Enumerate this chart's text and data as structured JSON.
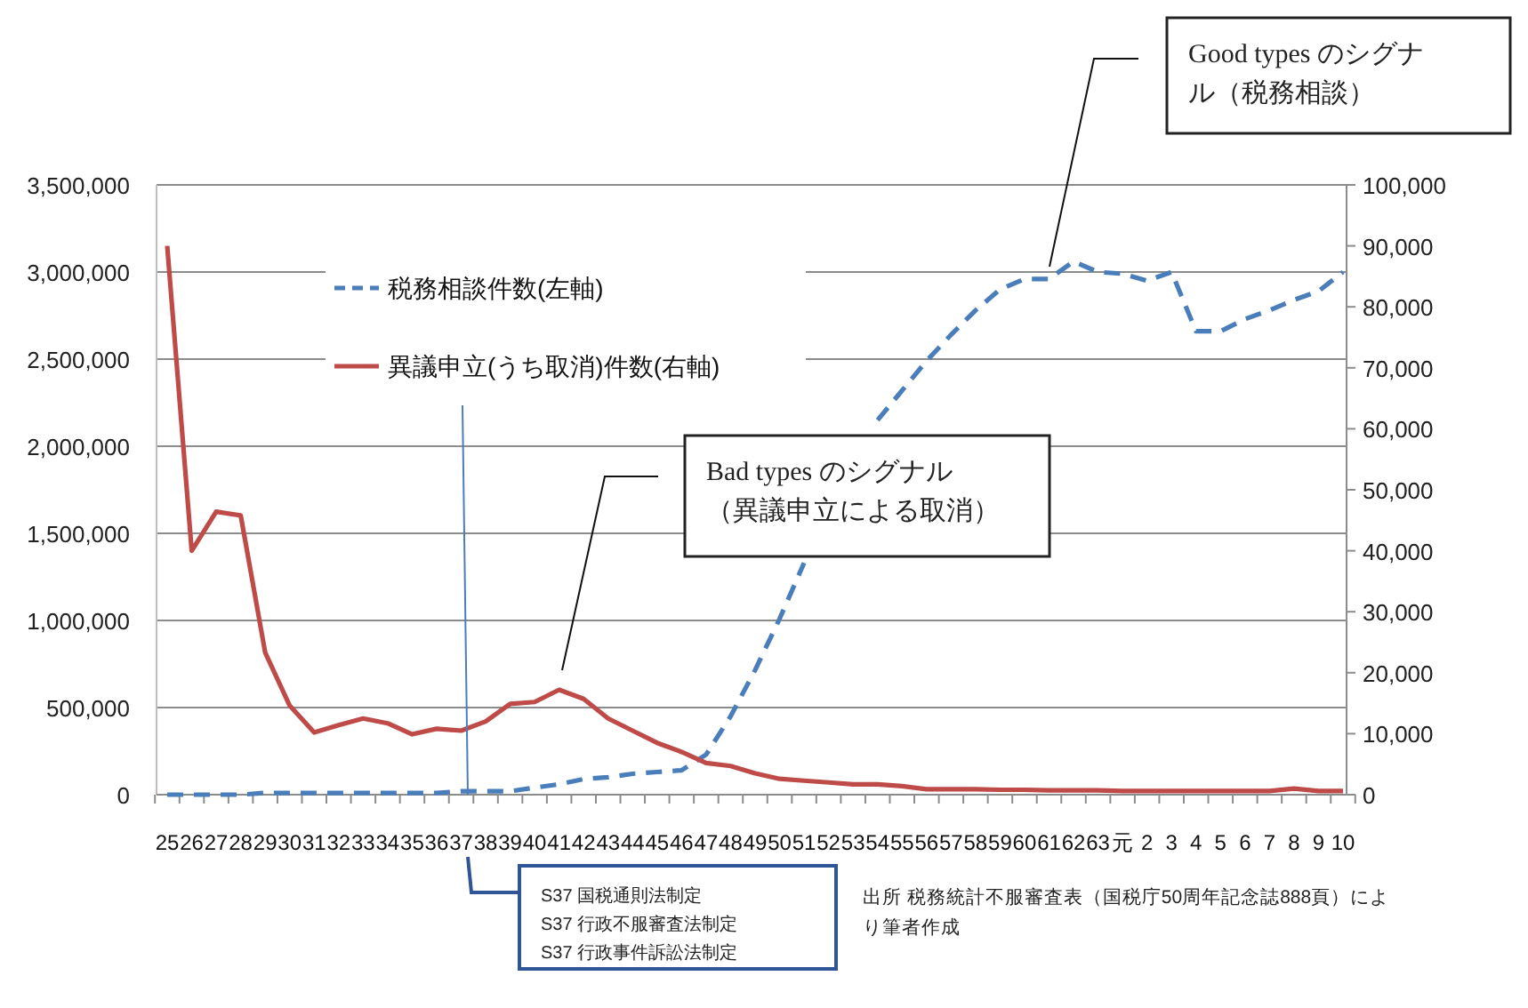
{
  "chart_data": {
    "type": "line",
    "categories": [
      "25",
      "26",
      "27",
      "28",
      "29",
      "30",
      "31",
      "32",
      "33",
      "34",
      "35",
      "36",
      "37",
      "38",
      "39",
      "40",
      "41",
      "42",
      "43",
      "44",
      "45",
      "46",
      "47",
      "48",
      "49",
      "50",
      "51",
      "52",
      "53",
      "54",
      "55",
      "56",
      "57",
      "58",
      "59",
      "60",
      "61",
      "62",
      "63",
      "元",
      "2",
      "3",
      "4",
      "5",
      "6",
      "7",
      "8",
      "9",
      "10"
    ],
    "series": [
      {
        "name": "税務相談件数(左軸)",
        "color": "#4a7ebb",
        "line_style": "dashed",
        "axis": "y",
        "values": [
          0,
          0,
          0,
          0,
          10000,
          10000,
          10000,
          10000,
          10000,
          10000,
          10000,
          10000,
          20000,
          20000,
          20000,
          40000,
          60000,
          90000,
          100000,
          120000,
          130000,
          140000,
          230000,
          450000,
          715000,
          1010000,
          1330000,
          null,
          null,
          2150000,
          2320000,
          2490000,
          2640000,
          2780000,
          2900000,
          2960000,
          2960000,
          3060000,
          3000000,
          2990000,
          2950000,
          3000000,
          2660000,
          2660000,
          2730000,
          2780000,
          2840000,
          2890000,
          3000000
        ]
      },
      {
        "name": "異議申立(うち取消)件数(右軸)",
        "color": "#be4b48",
        "line_style": "solid",
        "axis": "y2",
        "values": [
          90000,
          40000,
          46400,
          45800,
          23300,
          14600,
          10200,
          11400,
          12500,
          11700,
          9900,
          10800,
          10500,
          12000,
          14900,
          15200,
          17200,
          15700,
          12500,
          10500,
          8500,
          7000,
          5200,
          4700,
          3500,
          2600,
          2300,
          2000,
          1700,
          1700,
          1400,
          900,
          900,
          900,
          800,
          800,
          700,
          700,
          700,
          600,
          600,
          600,
          600,
          600,
          600,
          600,
          1000,
          600,
          600
        ]
      }
    ],
    "ylim": [
      0,
      3500000
    ],
    "yticks": [
      {
        "value": 0,
        "label": "0"
      },
      {
        "value": 500000,
        "label": "500,000"
      },
      {
        "value": 1000000,
        "label": "1,000,000"
      },
      {
        "value": 1500000,
        "label": "1,500,000"
      },
      {
        "value": 2000000,
        "label": "2,000,000"
      },
      {
        "value": 2500000,
        "label": "2,500,000"
      },
      {
        "value": 3000000,
        "label": "3,000,000"
      },
      {
        "value": 3500000,
        "label": "3,500,000"
      }
    ],
    "y2lim": [
      0,
      100000
    ],
    "y2ticks": [
      {
        "value": 0,
        "label": "0"
      },
      {
        "value": 10000,
        "label": "10,000"
      },
      {
        "value": 20000,
        "label": "20,000"
      },
      {
        "value": 30000,
        "label": "30,000"
      },
      {
        "value": 40000,
        "label": "40,000"
      },
      {
        "value": 50000,
        "label": "50,000"
      },
      {
        "value": 60000,
        "label": "60,000"
      },
      {
        "value": 70000,
        "label": "70,000"
      },
      {
        "value": 80000,
        "label": "80,000"
      },
      {
        "value": 90000,
        "label": "90,000"
      },
      {
        "value": 100000,
        "label": "100,000"
      }
    ],
    "grid": "y",
    "legend": "top left",
    "annotations": [
      "Good types のシグナル（税務相談）",
      "Bad types のシグナル（異議申立による取消）",
      "S37  国税通則法制定\nS37  行政不服審査法制定\nS37  行政事件訴訟法制定",
      "出所  税務統計不服審査表（国税庁50周年記念誌888頁）により筆者作成"
    ]
  }
}
